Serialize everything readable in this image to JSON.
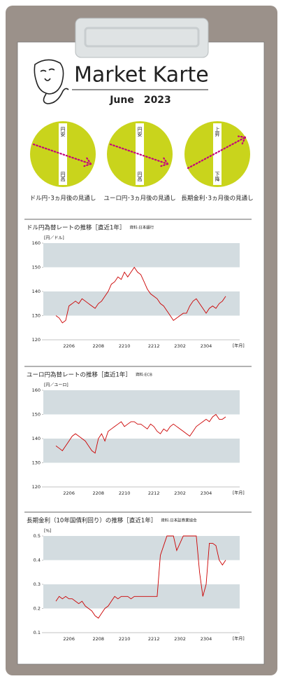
{
  "header": {
    "title": "Market Karte",
    "subtitle": "June　2023"
  },
  "outlooks": [
    {
      "top": "円安",
      "bottom": "円高",
      "caption": "ドル円･3ヵ月後の見通し"
    },
    {
      "top": "円安",
      "bottom": "円高",
      "caption": "ユーロ円･3ヵ月後の見通し"
    },
    {
      "top": "上昇",
      "bottom": "下降",
      "caption": "長期金利･3ヵ月後の見通し"
    }
  ],
  "chart_data": [
    {
      "type": "line",
      "title": "ドル円為替レートの推移［直近1年］",
      "source": "資料:日本銀行",
      "y_unit": "[円／ドル]",
      "x_unit": "[年月]",
      "categories": [
        null,
        null,
        null,
        null,
        "2206",
        null,
        null,
        null,
        null,
        null,
        null,
        null,
        null,
        "2208",
        null,
        null,
        null,
        null,
        null,
        null,
        null,
        "2210",
        null,
        null,
        null,
        null,
        null,
        null,
        null,
        null,
        "2212",
        null,
        null,
        null,
        null,
        null,
        null,
        null,
        "2302",
        null,
        null,
        null,
        null,
        null,
        null,
        null,
        "2304",
        null,
        null,
        null,
        null,
        null,
        null
      ],
      "series": [
        {
          "color": "#cc0000",
          "values": [
            130,
            129,
            127,
            128,
            134,
            135,
            136,
            135,
            137,
            136,
            135,
            134,
            133,
            135,
            136,
            138,
            140,
            143,
            144,
            146,
            145,
            148,
            146,
            148,
            150,
            148,
            147,
            144,
            141,
            139,
            138,
            137,
            135,
            134,
            132,
            130,
            128,
            129,
            130,
            131,
            131,
            134,
            136,
            137,
            135,
            133,
            131,
            133,
            134,
            133,
            135,
            136,
            138
          ]
        }
      ],
      "ylim": [
        120,
        160
      ],
      "yticks": [
        120,
        130,
        140,
        150,
        160
      ],
      "grid_bands": true
    },
    {
      "type": "line",
      "title": "ユーロ円為替レートの推移［直近1年］",
      "source": "資料:ECB",
      "y_unit": "[円／ユーロ]",
      "x_unit": "[年月]",
      "categories": [
        null,
        null,
        null,
        null,
        "2206",
        null,
        null,
        null,
        null,
        null,
        null,
        null,
        null,
        "2208",
        null,
        null,
        null,
        null,
        null,
        null,
        null,
        "2210",
        null,
        null,
        null,
        null,
        null,
        null,
        null,
        null,
        "2212",
        null,
        null,
        null,
        null,
        null,
        null,
        null,
        "2302",
        null,
        null,
        null,
        null,
        null,
        null,
        null,
        "2304",
        null,
        null,
        null,
        null,
        null,
        null
      ],
      "series": [
        {
          "color": "#cc0000",
          "values": [
            137,
            136,
            135,
            137,
            139,
            141,
            142,
            141,
            140,
            139,
            137,
            135,
            134,
            140,
            142,
            139,
            143,
            144,
            145,
            146,
            147,
            145,
            146,
            147,
            147,
            146,
            146,
            145,
            144,
            146,
            145,
            143,
            142,
            144,
            143,
            145,
            146,
            145,
            144,
            143,
            142,
            141,
            143,
            145,
            146,
            147,
            148,
            147,
            149,
            150,
            148,
            148,
            149
          ]
        }
      ],
      "ylim": [
        120,
        160
      ],
      "yticks": [
        120,
        130,
        140,
        150,
        160
      ],
      "grid_bands": true
    },
    {
      "type": "line",
      "title": "長期金利（10年国債利回り）の推移［直近1年］",
      "source": "資料:日本証券業協会",
      "y_unit": "[%]",
      "x_unit": "[年月]",
      "categories": [
        null,
        null,
        null,
        null,
        "2206",
        null,
        null,
        null,
        null,
        null,
        null,
        null,
        null,
        "2208",
        null,
        null,
        null,
        null,
        null,
        null,
        null,
        "2210",
        null,
        null,
        null,
        null,
        null,
        null,
        null,
        null,
        "2212",
        null,
        null,
        null,
        null,
        null,
        null,
        null,
        "2302",
        null,
        null,
        null,
        null,
        null,
        null,
        null,
        "2304",
        null,
        null,
        null,
        null,
        null,
        null
      ],
      "series": [
        {
          "color": "#cc0000",
          "values": [
            0.23,
            0.25,
            0.24,
            0.25,
            0.24,
            0.24,
            0.23,
            0.22,
            0.23,
            0.21,
            0.2,
            0.19,
            0.17,
            0.16,
            0.18,
            0.2,
            0.21,
            0.23,
            0.25,
            0.24,
            0.25,
            0.25,
            0.25,
            0.24,
            0.25,
            0.25,
            0.25,
            0.25,
            0.25,
            0.25,
            0.25,
            0.25,
            0.42,
            0.46,
            0.5,
            0.5,
            0.5,
            0.44,
            0.47,
            0.5,
            0.5,
            0.5,
            0.5,
            0.5,
            0.35,
            0.25,
            0.3,
            0.47,
            0.47,
            0.46,
            0.4,
            0.38,
            0.4
          ]
        }
      ],
      "ylim": [
        0.1,
        0.5
      ],
      "yticks": [
        0.1,
        0.2,
        0.3,
        0.4,
        0.5
      ],
      "grid_bands": true
    }
  ]
}
